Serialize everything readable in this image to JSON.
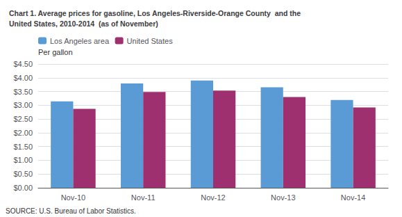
{
  "chart_data": {
    "type": "bar",
    "title": "Chart 1. Average prices for gasoline, Los Angeles-Riverside-Orange County  and the\nUnited States, 2010-2014  (as of November)",
    "ylabel": "Per gallon",
    "annotations": [
      "SOURCE: U.S. Bureau of Labor Statistics."
    ],
    "categories": [
      "Nov-10",
      "Nov-11",
      "Nov-12",
      "Nov-13",
      "Nov-14"
    ],
    "series": [
      {
        "name": "Los Angeles area",
        "color": "#5B9BD5",
        "values": [
          3.14,
          3.79,
          3.9,
          3.65,
          3.19
        ]
      },
      {
        "name": "United States",
        "color": "#9E3070",
        "values": [
          2.87,
          3.48,
          3.53,
          3.3,
          2.92
        ]
      }
    ],
    "ylim": [
      0,
      4.5
    ],
    "yticks": [
      {
        "value": 0.0,
        "label": "$0.00"
      },
      {
        "value": 0.5,
        "label": "$0.50"
      },
      {
        "value": 1.0,
        "label": "$1.00"
      },
      {
        "value": 1.5,
        "label": "$1.50"
      },
      {
        "value": 2.0,
        "label": "$2.00"
      },
      {
        "value": 2.5,
        "label": "$2.50"
      },
      {
        "value": 3.0,
        "label": "$3.00"
      },
      {
        "value": 3.5,
        "label": "$3.50"
      },
      {
        "value": 4.0,
        "label": "$4.00"
      },
      {
        "value": 4.5,
        "label": "$4.50"
      }
    ],
    "grid": true,
    "legend": "upper left"
  }
}
